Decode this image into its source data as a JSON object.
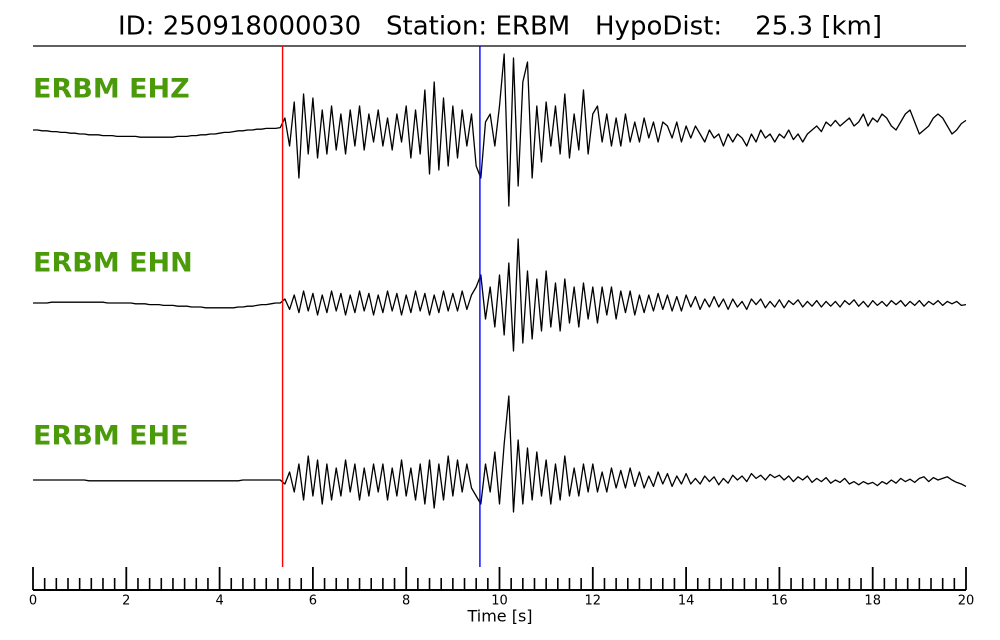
{
  "chart_data": {
    "type": "line",
    "title": "ID: 250918000030   Station: ERBM   HypoDist:    25.3 [km]",
    "xlabel": "Time [s]",
    "xlim": [
      0,
      20
    ],
    "xticks": [
      0,
      2,
      4,
      6,
      8,
      10,
      12,
      14,
      16,
      18,
      20
    ],
    "xticks_minor": [
      0.25,
      0.5,
      0.75,
      1,
      1.25,
      1.5,
      1.75,
      2.25,
      2.5,
      2.75,
      3,
      3.25,
      3.5,
      3.75,
      4.25,
      4.5,
      4.75,
      5,
      5.25,
      5.5,
      5.75,
      6.25,
      6.5,
      6.75,
      7,
      7.25,
      7.5,
      7.75,
      8.25,
      8.5,
      8.75,
      9,
      9.25,
      9.5,
      9.75,
      10.25,
      10.5,
      10.75,
      11,
      11.25,
      11.5,
      11.75,
      12.25,
      12.5,
      12.75,
      13,
      13.25,
      13.5,
      13.75,
      14.25,
      14.5,
      14.75,
      15,
      15.25,
      15.5,
      15.75,
      16.25,
      16.5,
      16.75,
      17,
      17.25,
      17.5,
      17.75,
      18.25,
      18.5,
      18.75,
      19,
      19.25,
      19.5,
      19.75
    ],
    "ylim": [
      -1.1,
      1.1
    ],
    "label_color": "#4a9a0a",
    "markers": [
      {
        "x": 5.35,
        "color": "#ff0000"
      },
      {
        "x": 9.58,
        "color": "#0000ff"
      }
    ],
    "x": [
      0,
      0.1,
      0.2,
      0.3,
      0.4,
      0.5,
      0.6,
      0.7,
      0.8,
      0.9,
      1,
      1.1,
      1.2,
      1.3,
      1.4,
      1.5,
      1.6,
      1.7,
      1.8,
      1.9,
      2,
      2.1,
      2.2,
      2.3,
      2.4,
      2.5,
      2.6,
      2.7,
      2.8,
      2.9,
      3,
      3.1,
      3.2,
      3.3,
      3.4,
      3.5,
      3.6,
      3.7,
      3.8,
      3.9,
      4,
      4.1,
      4.2,
      4.3,
      4.4,
      4.5,
      4.6,
      4.7,
      4.8,
      4.9,
      5,
      5.1,
      5.2,
      5.3,
      5.4,
      5.5,
      5.6,
      5.7,
      5.8,
      5.9,
      6,
      6.1,
      6.2,
      6.3,
      6.4,
      6.5,
      6.6,
      6.7,
      6.8,
      6.9,
      7,
      7.1,
      7.2,
      7.3,
      7.4,
      7.5,
      7.6,
      7.7,
      7.8,
      7.9,
      8,
      8.1,
      8.2,
      8.3,
      8.4,
      8.5,
      8.6,
      8.7,
      8.8,
      8.9,
      9,
      9.1,
      9.2,
      9.3,
      9.4,
      9.5,
      9.6,
      9.7,
      9.8,
      9.9,
      10,
      10.1,
      10.2,
      10.3,
      10.4,
      10.5,
      10.6,
      10.7,
      10.8,
      10.9,
      11,
      11.1,
      11.2,
      11.3,
      11.4,
      11.5,
      11.6,
      11.7,
      11.8,
      11.9,
      12,
      12.1,
      12.2,
      12.3,
      12.4,
      12.5,
      12.6,
      12.7,
      12.8,
      12.9,
      13,
      13.1,
      13.2,
      13.3,
      13.4,
      13.5,
      13.6,
      13.7,
      13.8,
      13.9,
      14,
      14.1,
      14.2,
      14.3,
      14.4,
      14.5,
      14.6,
      14.7,
      14.8,
      14.9,
      15,
      15.1,
      15.2,
      15.3,
      15.4,
      15.5,
      15.6,
      15.7,
      15.8,
      15.9,
      16,
      16.1,
      16.2,
      16.3,
      16.4,
      16.5,
      16.6,
      16.7,
      16.8,
      16.9,
      17,
      17.1,
      17.2,
      17.3,
      17.4,
      17.5,
      17.6,
      17.7,
      17.8,
      17.9,
      18,
      18.1,
      18.2,
      18.3,
      18.4,
      18.5,
      18.6,
      18.7,
      18.8,
      18.9,
      19,
      19.1,
      19.2,
      19.3,
      19.4,
      19.5,
      19.6,
      19.7,
      19.8,
      19.9,
      20
    ],
    "series": [
      {
        "name": "ERBM EHZ",
        "color": "#000000",
        "values": [
          0,
          0,
          -0.01,
          -0.01,
          -0.02,
          -0.02,
          -0.03,
          -0.03,
          -0.04,
          -0.04,
          -0.05,
          -0.05,
          -0.06,
          -0.06,
          -0.06,
          -0.07,
          -0.07,
          -0.07,
          -0.08,
          -0.08,
          -0.08,
          -0.08,
          -0.08,
          -0.09,
          -0.09,
          -0.09,
          -0.09,
          -0.09,
          -0.09,
          -0.09,
          -0.09,
          -0.08,
          -0.08,
          -0.08,
          -0.07,
          -0.07,
          -0.06,
          -0.06,
          -0.05,
          -0.05,
          -0.04,
          -0.03,
          -0.03,
          -0.02,
          -0.01,
          -0.01,
          0,
          0,
          0.01,
          0.01,
          0.02,
          0.02,
          0.02,
          0.03,
          0.15,
          -0.2,
          0.35,
          -0.6,
          0.45,
          -0.3,
          0.4,
          -0.35,
          0.25,
          -0.3,
          0.3,
          -0.25,
          0.2,
          -0.3,
          0.25,
          -0.2,
          0.3,
          -0.25,
          0.2,
          -0.15,
          0.25,
          -0.2,
          0.15,
          -0.25,
          0.2,
          -0.15,
          0.3,
          -0.35,
          0.25,
          -0.3,
          0.5,
          -0.55,
          0.6,
          -0.5,
          0.4,
          -0.45,
          0.3,
          -0.35,
          0.25,
          -0.2,
          0.2,
          -0.45,
          -0.6,
          0.1,
          0.2,
          -0.2,
          0.3,
          0.95,
          -0.95,
          0.9,
          -0.7,
          0.6,
          0.85,
          -0.6,
          0.3,
          -0.4,
          0.35,
          -0.2,
          0.3,
          -0.3,
          0.45,
          -0.35,
          0.2,
          -0.25,
          0.5,
          -0.3,
          0.2,
          0.3,
          -0.15,
          0.2,
          -0.2,
          0.15,
          -0.2,
          0.2,
          -0.15,
          0.1,
          -0.15,
          0.15,
          -0.1,
          0.1,
          -0.15,
          0.1,
          0.05,
          -0.1,
          0.1,
          -0.15,
          0.05,
          -0.1,
          0.05,
          -0.05,
          -0.15,
          0,
          -0.1,
          -0.05,
          -0.2,
          -0.05,
          -0.15,
          -0.05,
          -0.1,
          -0.2,
          -0.05,
          -0.15,
          0,
          -0.1,
          -0.05,
          -0.15,
          -0.05,
          -0.1,
          0,
          -0.12,
          -0.05,
          -0.15,
          -0.05,
          0,
          0.05,
          -0.02,
          0.1,
          0.05,
          0.12,
          0.05,
          0.1,
          0.15,
          0.05,
          0.1,
          0.2,
          0.05,
          0.15,
          0.1,
          0.2,
          0.15,
          0.05,
          0,
          0.1,
          0.2,
          0.25,
          0.1,
          -0.05,
          0,
          0.05,
          0.15,
          0.2,
          0.15,
          0.05,
          -0.05,
          0,
          0.08,
          0.12
        ]
      },
      {
        "name": "ERBM EHN",
        "color": "#000000",
        "values": [
          0,
          0,
          0,
          0,
          0.01,
          0.01,
          0.01,
          0.01,
          0.01,
          0.01,
          0.01,
          0.01,
          0.01,
          0.01,
          0.01,
          0.01,
          0,
          0,
          0,
          0,
          0,
          0,
          -0.01,
          -0.01,
          -0.01,
          -0.02,
          -0.02,
          -0.02,
          -0.03,
          -0.03,
          -0.03,
          -0.04,
          -0.04,
          -0.04,
          -0.05,
          -0.05,
          -0.05,
          -0.06,
          -0.06,
          -0.06,
          -0.06,
          -0.06,
          -0.06,
          -0.06,
          -0.05,
          -0.05,
          -0.04,
          -0.04,
          -0.03,
          -0.02,
          -0.02,
          -0.01,
          0,
          0,
          0.05,
          -0.08,
          0.1,
          -0.12,
          0.15,
          -0.1,
          0.12,
          -0.15,
          0.1,
          -0.12,
          0.15,
          -0.1,
          0.12,
          -0.15,
          0.1,
          -0.12,
          0.15,
          -0.1,
          0.12,
          -0.15,
          0.1,
          -0.12,
          0.15,
          -0.1,
          0.12,
          -0.15,
          0.1,
          -0.12,
          0.15,
          -0.1,
          0.12,
          -0.15,
          0.1,
          -0.12,
          0.15,
          -0.1,
          0.12,
          -0.1,
          0.15,
          -0.08,
          0.1,
          0.2,
          0.35,
          -0.2,
          0.2,
          -0.3,
          0.35,
          -0.4,
          0.5,
          -0.6,
          0.8,
          -0.5,
          0.4,
          -0.45,
          0.3,
          -0.35,
          0.4,
          -0.3,
          0.25,
          -0.35,
          0.3,
          -0.25,
          0.2,
          -0.3,
          0.25,
          -0.2,
          0.2,
          -0.25,
          0.2,
          -0.15,
          0.2,
          -0.2,
          0.15,
          -0.12,
          0.15,
          -0.15,
          0.1,
          -0.12,
          0.1,
          -0.1,
          0.12,
          -0.08,
          0.1,
          -0.1,
          0.08,
          -0.1,
          0.1,
          -0.05,
          0.08,
          -0.08,
          0.05,
          -0.05,
          0.08,
          -0.05,
          0.05,
          -0.08,
          0.05,
          -0.05,
          0.02,
          -0.08,
          0.05,
          -0.02,
          0.05,
          -0.06,
          0.02,
          -0.05,
          0.04,
          -0.06,
          0.03,
          -0.02,
          0.04,
          -0.05,
          0.02,
          -0.04,
          0.03,
          -0.05,
          0.02,
          -0.04,
          0.02,
          -0.05,
          0.03,
          -0.02,
          0.04,
          -0.04,
          0.02,
          -0.05,
          0.03,
          -0.03,
          0.02,
          -0.04,
          0.03,
          -0.02,
          0.03,
          -0.04,
          0.02,
          -0.03,
          0.03,
          -0.04,
          0.02,
          -0.02,
          0.03,
          -0.03,
          0.02,
          -0.01,
          0.02,
          -0.03,
          -0.02
        ]
      },
      {
        "name": "ERBM EHE",
        "color": "#000000",
        "values": [
          0,
          0,
          0,
          0,
          0,
          0,
          0,
          0,
          0,
          0,
          0,
          0,
          -0.01,
          -0.01,
          -0.01,
          -0.01,
          -0.01,
          -0.01,
          -0.01,
          -0.01,
          -0.01,
          -0.01,
          -0.01,
          -0.01,
          -0.01,
          -0.01,
          -0.01,
          -0.01,
          -0.01,
          -0.01,
          -0.01,
          -0.01,
          -0.01,
          -0.01,
          -0.01,
          -0.01,
          -0.01,
          -0.01,
          -0.01,
          -0.01,
          -0.01,
          -0.01,
          -0.01,
          -0.01,
          -0.01,
          0,
          0,
          0,
          0,
          0,
          0,
          0,
          0,
          0,
          -0.05,
          0.1,
          -0.15,
          0.2,
          -0.25,
          0.3,
          -0.2,
          0.25,
          -0.3,
          0.2,
          -0.25,
          0.15,
          -0.2,
          0.25,
          -0.15,
          0.2,
          -0.25,
          0.15,
          -0.2,
          0.2,
          -0.15,
          0.2,
          -0.25,
          0.15,
          -0.2,
          0.25,
          -0.2,
          0.15,
          -0.25,
          0.2,
          -0.3,
          0.25,
          -0.35,
          0.2,
          -0.25,
          0.3,
          -0.2,
          0.25,
          -0.15,
          0.2,
          -0.1,
          -0.2,
          -0.3,
          0.2,
          -0.15,
          0.35,
          -0.3,
          0.45,
          1.05,
          -0.4,
          0.5,
          -0.3,
          0.4,
          -0.25,
          0.35,
          -0.2,
          0.25,
          -0.3,
          0.2,
          -0.25,
          0.3,
          -0.2,
          0.15,
          -0.2,
          0.2,
          -0.15,
          0.2,
          -0.15,
          0.1,
          -0.15,
          0.15,
          -0.1,
          0.12,
          -0.1,
          0.15,
          -0.08,
          0.1,
          -0.1,
          0.05,
          -0.08,
          0.1,
          -0.05,
          0.08,
          -0.08,
          0.05,
          -0.05,
          0.08,
          -0.05,
          0.02,
          -0.05,
          0.05,
          -0.02,
          0.04,
          -0.06,
          0.02,
          -0.04,
          0.06,
          0,
          0.05,
          -0.02,
          0.08,
          0.02,
          0.06,
          0,
          0.07,
          0.03,
          0.06,
          0,
          0.05,
          -0.02,
          0.04,
          0,
          0.05,
          -0.03,
          0.02,
          -0.02,
          0.03,
          -0.04,
          0,
          -0.03,
          0.02,
          -0.05,
          -0.02,
          -0.06,
          -0.02,
          -0.05,
          -0.03,
          -0.07,
          -0.02,
          -0.05,
          0,
          -0.04,
          0.02,
          -0.02,
          0.01,
          -0.03,
          0.02,
          0.04,
          -0.02,
          0.03,
          0,
          0.02,
          0.04,
          0,
          -0.03,
          -0.05,
          -0.08
        ]
      }
    ]
  }
}
